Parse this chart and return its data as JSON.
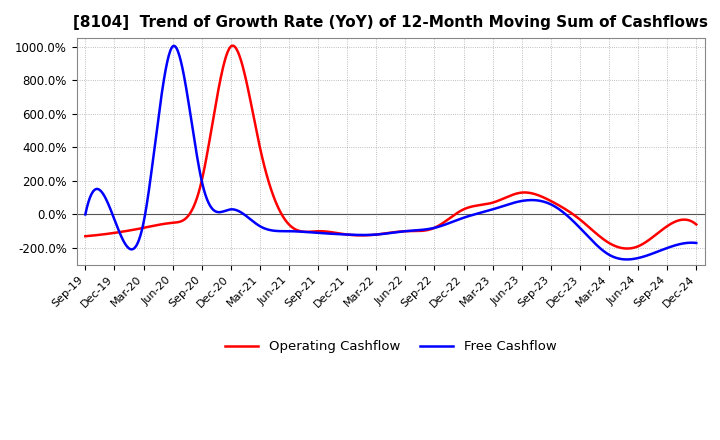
{
  "title": "[8104]  Trend of Growth Rate (YoY) of 12-Month Moving Sum of Cashflows",
  "title_fontsize": 11,
  "ylim": [
    -300,
    1050
  ],
  "yticks": [
    -200,
    0,
    200,
    400,
    600,
    800,
    1000
  ],
  "ytick_labels": [
    "-200.0%",
    "0.0%",
    "200.0%",
    "400.0%",
    "600.0%",
    "800.0%",
    "1000.0%"
  ],
  "xtick_labels": [
    "Sep-19",
    "Dec-19",
    "Mar-20",
    "Jun-20",
    "Sep-20",
    "Dec-20",
    "Mar-21",
    "Jun-21",
    "Sep-21",
    "Dec-21",
    "Mar-22",
    "Jun-22",
    "Sep-22",
    "Dec-22",
    "Mar-23",
    "Jun-23",
    "Sep-23",
    "Dec-23",
    "Mar-24",
    "Jun-24",
    "Sep-24",
    "Dec-24"
  ],
  "operating_color": "#FF0000",
  "free_color": "#0000FF",
  "background_color": "#FFFFFF",
  "grid_color": "#AAAAAA",
  "zero_line_color": "#555555",
  "operating_cashflow": [
    -130,
    -110,
    -80,
    -50,
    200,
    1000,
    400,
    -60,
    -100,
    -120,
    -120,
    -100,
    -80,
    30,
    70,
    130,
    80,
    -30,
    -170,
    -190,
    -70,
    -60
  ],
  "free_cashflow": [
    0,
    -30,
    -50,
    1000,
    200,
    30,
    -70,
    -100,
    -110,
    -120,
    -120,
    -100,
    -80,
    -20,
    30,
    80,
    60,
    -80,
    -240,
    -260,
    -200,
    -170
  ],
  "line_width": 1.8,
  "legend_items": [
    "Operating Cashflow",
    "Free Cashflow"
  ]
}
